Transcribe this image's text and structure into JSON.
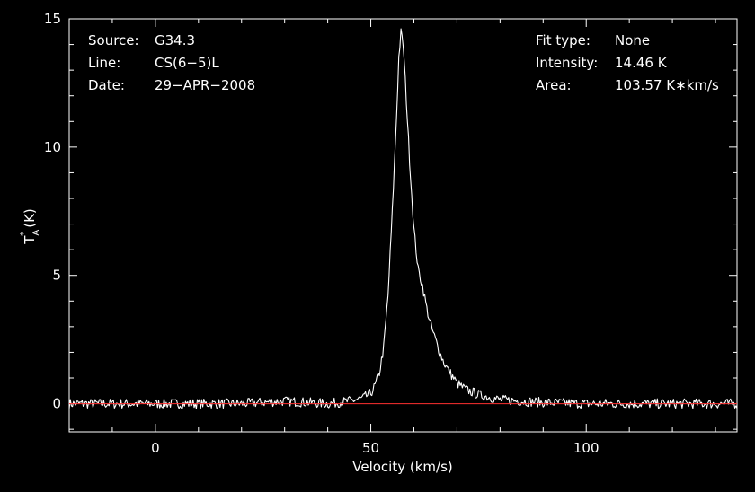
{
  "header": {
    "source_label": "Source:",
    "source_value": "G34.3",
    "line_label": "Line:",
    "line_value": "CS(6−5)L",
    "date_label": "Date:",
    "date_value": "29−APR−2008",
    "fit_label": "Fit type:",
    "fit_value": "None",
    "intensity_label": "Intensity:",
    "intensity_value": "14.46 K",
    "area_label": "Area:",
    "area_value": "103.57 K∗km/s"
  },
  "chart_data": {
    "type": "line",
    "title": "",
    "xlabel": "Velocity (km/s)",
    "ylabel": "T_A^* (K)",
    "xlim": [
      -20,
      135
    ],
    "ylim": [
      -1.1,
      15
    ],
    "x_ticks": [
      0,
      50,
      100
    ],
    "y_ticks": [
      0,
      5,
      10,
      15
    ],
    "grid": false,
    "colors": {
      "background": "#000000",
      "axes": "#ffffff",
      "spectrum": "#ffffff",
      "baseline": "#ff3030"
    },
    "series": [
      {
        "style": "spectrum",
        "x": [
          -20,
          -10,
          0,
          10,
          20,
          30,
          40,
          45,
          48,
          50,
          51,
          52,
          53,
          54,
          55,
          56,
          56.5,
          57,
          57.5,
          58,
          59,
          60,
          61,
          62,
          63,
          64,
          65,
          66,
          67,
          68,
          70,
          72,
          75,
          80,
          90,
          100,
          110,
          120,
          130,
          135
        ],
        "y": [
          0,
          0,
          0,
          0,
          0,
          0.1,
          0,
          0.1,
          0.2,
          0.4,
          0.7,
          1.2,
          2.2,
          4.2,
          7.5,
          11.3,
          13.5,
          14.46,
          14.0,
          12.6,
          9.5,
          6.8,
          5.2,
          4.6,
          3.7,
          3.0,
          2.5,
          2.0,
          1.6,
          1.3,
          0.8,
          0.55,
          0.35,
          0.15,
          0.05,
          0,
          0,
          0,
          0,
          0
        ]
      },
      {
        "style": "baseline",
        "x": [
          -20,
          135
        ],
        "y": [
          0,
          0
        ]
      }
    ]
  }
}
